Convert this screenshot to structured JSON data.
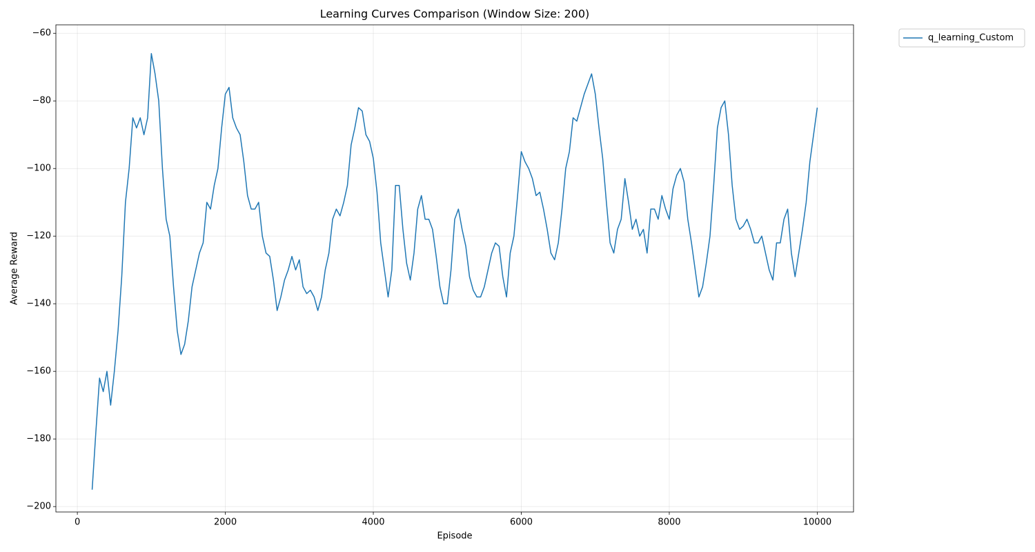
{
  "chart_data": {
    "type": "line",
    "title": "Learning Curves Comparison (Window Size: 200)",
    "x_label": "Episode",
    "y_label": "Average Reward",
    "xlim": [
      -290,
      10490
    ],
    "ylim": [
      -201.6,
      -57.5
    ],
    "xticks": [
      0,
      2000,
      4000,
      6000,
      8000,
      10000
    ],
    "yticks": [
      {
        "value": -200,
        "label": "−200"
      },
      {
        "value": -180,
        "label": "−180"
      },
      {
        "value": -160,
        "label": "−160"
      },
      {
        "value": -140,
        "label": "−140"
      },
      {
        "value": -120,
        "label": "−120"
      },
      {
        "value": -100,
        "label": "−100"
      },
      {
        "value": -80,
        "label": "−80"
      },
      {
        "value": -60,
        "label": "−60"
      }
    ],
    "grid": true,
    "legend": "outside upper right",
    "x": [
      200,
      250,
      300,
      350,
      400,
      450,
      500,
      550,
      600,
      650,
      700,
      750,
      800,
      850,
      900,
      950,
      1000,
      1050,
      1100,
      1150,
      1200,
      1250,
      1300,
      1350,
      1400,
      1450,
      1500,
      1550,
      1600,
      1650,
      1700,
      1750,
      1800,
      1850,
      1900,
      1950,
      2000,
      2050,
      2100,
      2150,
      2200,
      2250,
      2300,
      2350,
      2400,
      2450,
      2500,
      2550,
      2600,
      2650,
      2700,
      2750,
      2800,
      2850,
      2900,
      2950,
      3000,
      3050,
      3100,
      3150,
      3200,
      3250,
      3300,
      3350,
      3400,
      3450,
      3500,
      3550,
      3600,
      3650,
      3700,
      3750,
      3800,
      3850,
      3900,
      3950,
      4000,
      4050,
      4100,
      4150,
      4200,
      4250,
      4300,
      4350,
      4400,
      4450,
      4500,
      4550,
      4600,
      4650,
      4700,
      4750,
      4800,
      4850,
      4900,
      4950,
      5000,
      5050,
      5100,
      5150,
      5200,
      5250,
      5300,
      5350,
      5400,
      5450,
      5500,
      5550,
      5600,
      5650,
      5700,
      5750,
      5800,
      5850,
      5900,
      5950,
      6000,
      6050,
      6100,
      6150,
      6200,
      6250,
      6300,
      6350,
      6400,
      6450,
      6500,
      6550,
      6600,
      6650,
      6700,
      6750,
      6800,
      6850,
      6900,
      6950,
      7000,
      7050,
      7100,
      7150,
      7200,
      7250,
      7300,
      7350,
      7400,
      7450,
      7500,
      7550,
      7600,
      7650,
      7700,
      7750,
      7800,
      7850,
      7900,
      7950,
      8000,
      8050,
      8100,
      8150,
      8200,
      8250,
      8300,
      8350,
      8400,
      8450,
      8500,
      8550,
      8600,
      8650,
      8700,
      8750,
      8800,
      8850,
      8900,
      8950,
      9000,
      9050,
      9100,
      9150,
      9200,
      9250,
      9300,
      9350,
      9400,
      9450,
      9500,
      9550,
      9600,
      9650,
      9700,
      9750,
      9800,
      9850,
      9900,
      9950,
      10000
    ],
    "series": [
      {
        "name": "q_learning_Custom",
        "color": "#1f77b4",
        "values": [
          -195,
          -178,
          -162,
          -166,
          -160,
          -170,
          -160,
          -148,
          -132,
          -110,
          -100,
          -85,
          -88,
          -85,
          -90,
          -85,
          -66,
          -72,
          -80,
          -100,
          -115,
          -120,
          -135,
          -148,
          -155,
          -152,
          -145,
          -135,
          -130,
          -125,
          -122,
          -110,
          -112,
          -105,
          -100,
          -88,
          -78,
          -76,
          -85,
          -88,
          -90,
          -98,
          -108,
          -112,
          -112,
          -110,
          -120,
          -125,
          -126,
          -133,
          -142,
          -138,
          -133,
          -130,
          -126,
          -130,
          -127,
          -135,
          -137,
          -136,
          -138,
          -142,
          -138,
          -130,
          -125,
          -115,
          -112,
          -114,
          -110,
          -105,
          -93,
          -88,
          -82,
          -83,
          -90,
          -92,
          -97,
          -107,
          -122,
          -130,
          -138,
          -130,
          -105,
          -105,
          -118,
          -128,
          -133,
          -125,
          -112,
          -108,
          -115,
          -115,
          -118,
          -126,
          -135,
          -140,
          -140,
          -130,
          -115,
          -112,
          -118,
          -123,
          -132,
          -136,
          -138,
          -138,
          -135,
          -130,
          -125,
          -122,
          -123,
          -132,
          -138,
          -125,
          -120,
          -108,
          -95,
          -98,
          -100,
          -103,
          -108,
          -107,
          -112,
          -118,
          -125,
          -127,
          -122,
          -112,
          -100,
          -95,
          -85,
          -86,
          -82,
          -78,
          -75,
          -72,
          -78,
          -88,
          -97,
          -110,
          -122,
          -125,
          -118,
          -115,
          -103,
          -110,
          -118,
          -115,
          -120,
          -118,
          -125,
          -112,
          -112,
          -115,
          -108,
          -112,
          -115,
          -106,
          -102,
          -100,
          -104,
          -115,
          -122,
          -130,
          -138,
          -135,
          -128,
          -120,
          -105,
          -88,
          -82,
          -80,
          -90,
          -105,
          -115,
          -118,
          -117,
          -115,
          -118,
          -122,
          -122,
          -120,
          -125,
          -130,
          -133,
          -122,
          -122,
          -115,
          -112,
          -125,
          -132,
          -125,
          -118,
          -110,
          -98,
          -90,
          -82
        ]
      }
    ]
  }
}
